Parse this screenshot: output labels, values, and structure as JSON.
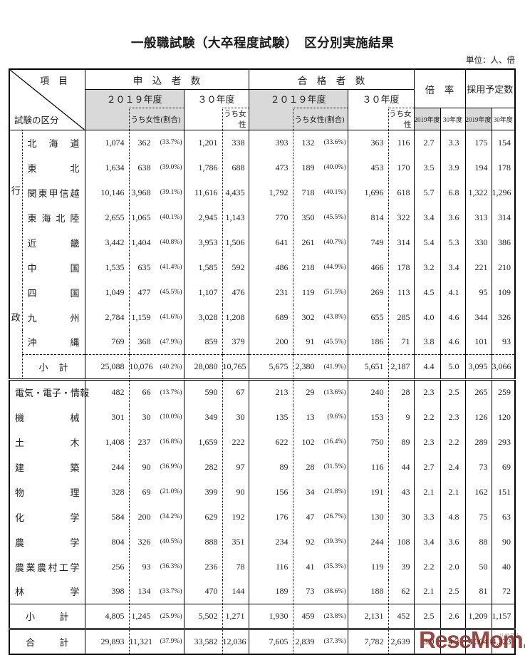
{
  "page": {
    "title": "一般職試験（大卒程度試験）　区分別実施結果",
    "unit_label": "単位：人、倍"
  },
  "header": {
    "item_label": "項　目",
    "category_label": "試験の区分",
    "applicants": "申　込　者　数",
    "passers": "合　格　者　数",
    "ratio": "倍　率",
    "planned": "採用予定数",
    "fy2019": "２０１９年度",
    "fy30": "３０年度",
    "female_share": "うち女性(割合)",
    "female": "うち女性",
    "fy2019_small": "2019年度",
    "fy30_small": "30年度"
  },
  "colors": {
    "header_gray": "#d9d9d9",
    "watermark_red": "#8a2822",
    "border_black": "#000000"
  },
  "watermark": {
    "text": "ReseMom.",
    "ruby": "リセマム"
  },
  "table": {
    "admin_group_label": "行政",
    "blocks": [
      {
        "id": "admin",
        "rows": [
          {
            "label": "北海道",
            "app2019": "1,074",
            "app2019_f": "362",
            "app2019_pct": "(33.7%)",
            "app30": "1,201",
            "app30_f": "338",
            "pass2019": "393",
            "pass2019_f": "132",
            "pass2019_pct": "(33.6%)",
            "pass30": "363",
            "pass30_f": "116",
            "ratio2019": "2.7",
            "ratio30": "3.3",
            "plan2019": "175",
            "plan30": "154"
          },
          {
            "label": "東北",
            "app2019": "1,634",
            "app2019_f": "638",
            "app2019_pct": "(39.0%)",
            "app30": "1,786",
            "app30_f": "688",
            "pass2019": "473",
            "pass2019_f": "189",
            "pass2019_pct": "(40.0%)",
            "pass30": "453",
            "pass30_f": "170",
            "ratio2019": "3.5",
            "ratio30": "3.9",
            "plan2019": "194",
            "plan30": "178"
          },
          {
            "label": "関東甲信越",
            "app2019": "10,146",
            "app2019_f": "3,968",
            "app2019_pct": "(39.1%)",
            "app30": "11,616",
            "app30_f": "4,435",
            "pass2019": "1,792",
            "pass2019_f": "718",
            "pass2019_pct": "(40.1%)",
            "pass30": "1,696",
            "pass30_f": "618",
            "ratio2019": "5.7",
            "ratio30": "6.8",
            "plan2019": "1,322",
            "plan30": "1,296"
          },
          {
            "label": "東海北陸",
            "app2019": "2,655",
            "app2019_f": "1,065",
            "app2019_pct": "(40.1%)",
            "app30": "2,945",
            "app30_f": "1,143",
            "pass2019": "770",
            "pass2019_f": "350",
            "pass2019_pct": "(45.5%)",
            "pass30": "814",
            "pass30_f": "322",
            "ratio2019": "3.4",
            "ratio30": "3.6",
            "plan2019": "313",
            "plan30": "314"
          },
          {
            "label": "近畿",
            "app2019": "3,442",
            "app2019_f": "1,404",
            "app2019_pct": "(40.8%)",
            "app30": "3,953",
            "app30_f": "1,506",
            "pass2019": "641",
            "pass2019_f": "261",
            "pass2019_pct": "(40.7%)",
            "pass30": "749",
            "pass30_f": "314",
            "ratio2019": "5.4",
            "ratio30": "5.3",
            "plan2019": "330",
            "plan30": "386"
          },
          {
            "label": "中国",
            "app2019": "1,535",
            "app2019_f": "635",
            "app2019_pct": "(41.4%)",
            "app30": "1,585",
            "app30_f": "592",
            "pass2019": "486",
            "pass2019_f": "218",
            "pass2019_pct": "(44.9%)",
            "pass30": "466",
            "pass30_f": "178",
            "ratio2019": "3.2",
            "ratio30": "3.4",
            "plan2019": "221",
            "plan30": "210"
          },
          {
            "label": "四国",
            "app2019": "1,049",
            "app2019_f": "477",
            "app2019_pct": "(45.5%)",
            "app30": "1,107",
            "app30_f": "476",
            "pass2019": "231",
            "pass2019_f": "119",
            "pass2019_pct": "(51.5%)",
            "pass30": "269",
            "pass30_f": "113",
            "ratio2019": "4.5",
            "ratio30": "4.1",
            "plan2019": "95",
            "plan30": "109"
          },
          {
            "label": "九州",
            "app2019": "2,784",
            "app2019_f": "1,159",
            "app2019_pct": "(41.6%)",
            "app30": "3,028",
            "app30_f": "1,208",
            "pass2019": "689",
            "pass2019_f": "302",
            "pass2019_pct": "(43.8%)",
            "pass30": "655",
            "pass30_f": "285",
            "ratio2019": "4.0",
            "ratio30": "4.6",
            "plan2019": "344",
            "plan30": "326"
          },
          {
            "label": "沖縄",
            "app2019": "769",
            "app2019_f": "368",
            "app2019_pct": "(47.9%)",
            "app30": "859",
            "app30_f": "379",
            "pass2019": "200",
            "pass2019_f": "91",
            "pass2019_pct": "(45.5%)",
            "pass30": "186",
            "pass30_f": "71",
            "ratio2019": "3.8",
            "ratio30": "4.6",
            "plan2019": "101",
            "plan30": "93"
          },
          {
            "label": "小　計",
            "label_style": "subtotal-admin",
            "rule": "dashed",
            "app2019": "25,088",
            "app2019_f": "10,076",
            "app2019_pct": "(40.2%)",
            "app30": "28,080",
            "app30_f": "10,765",
            "pass2019": "5,675",
            "pass2019_f": "2,380",
            "pass2019_pct": "(41.9%)",
            "pass30": "5,651",
            "pass30_f": "2,187",
            "ratio2019": "4.4",
            "ratio30": "5.0",
            "plan2019": "3,095",
            "plan30": "3,066"
          }
        ]
      },
      {
        "id": "tech",
        "rows": [
          {
            "label": "電気・電子・情報",
            "app2019": "482",
            "app2019_f": "66",
            "app2019_pct": "(13.7%)",
            "app30": "590",
            "app30_f": "67",
            "pass2019": "213",
            "pass2019_f": "29",
            "pass2019_pct": "(13.6%)",
            "pass30": "240",
            "pass30_f": "28",
            "ratio2019": "2.3",
            "ratio30": "2.5",
            "plan2019": "265",
            "plan30": "259"
          },
          {
            "label": "機械",
            "app2019": "301",
            "app2019_f": "30",
            "app2019_pct": "(10.0%)",
            "app30": "349",
            "app30_f": "30",
            "pass2019": "135",
            "pass2019_f": "13",
            "pass2019_pct": "(9.6%)",
            "pass30": "153",
            "pass30_f": "9",
            "ratio2019": "2.2",
            "ratio30": "2.3",
            "plan2019": "126",
            "plan30": "120"
          },
          {
            "label": "土木",
            "app2019": "1,408",
            "app2019_f": "237",
            "app2019_pct": "(16.8%)",
            "app30": "1,659",
            "app30_f": "222",
            "pass2019": "622",
            "pass2019_f": "102",
            "pass2019_pct": "(16.4%)",
            "pass30": "750",
            "pass30_f": "89",
            "ratio2019": "2.3",
            "ratio30": "2.2",
            "plan2019": "289",
            "plan30": "293"
          },
          {
            "label": "建築",
            "app2019": "244",
            "app2019_f": "90",
            "app2019_pct": "(36.9%)",
            "app30": "282",
            "app30_f": "97",
            "pass2019": "89",
            "pass2019_f": "28",
            "pass2019_pct": "(31.5%)",
            "pass30": "116",
            "pass30_f": "44",
            "ratio2019": "2.7",
            "ratio30": "2.4",
            "plan2019": "73",
            "plan30": "69"
          },
          {
            "label": "物理",
            "app2019": "328",
            "app2019_f": "69",
            "app2019_pct": "(21.0%)",
            "app30": "399",
            "app30_f": "90",
            "pass2019": "156",
            "pass2019_f": "34",
            "pass2019_pct": "(21.8%)",
            "pass30": "191",
            "pass30_f": "43",
            "ratio2019": "2.1",
            "ratio30": "2.1",
            "plan2019": "162",
            "plan30": "151"
          },
          {
            "label": "化学",
            "app2019": "584",
            "app2019_f": "200",
            "app2019_pct": "(34.2%)",
            "app30": "629",
            "app30_f": "192",
            "pass2019": "176",
            "pass2019_f": "47",
            "pass2019_pct": "(26.7%)",
            "pass30": "130",
            "pass30_f": "30",
            "ratio2019": "3.3",
            "ratio30": "4.8",
            "plan2019": "75",
            "plan30": "63"
          },
          {
            "label": "農学",
            "app2019": "804",
            "app2019_f": "326",
            "app2019_pct": "(40.5%)",
            "app30": "888",
            "app30_f": "351",
            "pass2019": "234",
            "pass2019_f": "92",
            "pass2019_pct": "(39.3%)",
            "pass30": "244",
            "pass30_f": "108",
            "ratio2019": "3.4",
            "ratio30": "3.6",
            "plan2019": "88",
            "plan30": "90"
          },
          {
            "label": "農業農村工学",
            "app2019": "256",
            "app2019_f": "93",
            "app2019_pct": "(36.3%)",
            "app30": "236",
            "app30_f": "78",
            "pass2019": "116",
            "pass2019_f": "41",
            "pass2019_pct": "(35.3%)",
            "pass30": "119",
            "pass30_f": "39",
            "ratio2019": "2.2",
            "ratio30": "2.0",
            "plan2019": "50",
            "plan30": "40"
          },
          {
            "label": "林学",
            "app2019": "398",
            "app2019_f": "134",
            "app2019_pct": "(33.7%)",
            "app30": "470",
            "app30_f": "144",
            "pass2019": "189",
            "pass2019_f": "73",
            "pass2019_pct": "(38.6%)",
            "pass30": "188",
            "pass30_f": "62",
            "ratio2019": "2.1",
            "ratio30": "2.5",
            "plan2019": "81",
            "plan30": "72"
          },
          {
            "label": "小　計",
            "label_style": "subtotal",
            "rule": "solid",
            "app2019": "4,805",
            "app2019_f": "1,245",
            "app2019_pct": "(25.9%)",
            "app30": "5,502",
            "app30_f": "1,271",
            "pass2019": "1,930",
            "pass2019_f": "459",
            "pass2019_pct": "(23.8%)",
            "pass30": "2,131",
            "pass30_f": "452",
            "ratio2019": "2.5",
            "ratio30": "2.6",
            "plan2019": "1,209",
            "plan30": "1,157"
          }
        ]
      },
      {
        "id": "grand",
        "rows": [
          {
            "label": "合　計",
            "label_style": "subtotal",
            "app2019": "29,893",
            "app2019_f": "11,321",
            "app2019_pct": "(37.9%)",
            "app30": "33,582",
            "app30_f": "12,036",
            "pass2019": "7,605",
            "pass2019_f": "2,839",
            "pass2019_pct": "(37.3%)",
            "pass30": "7,782",
            "pass30_f": "2,639",
            "ratio2019": "3.9",
            "ratio30": "4.3",
            "plan2019": "4,304",
            "plan30": "4,223"
          }
        ]
      }
    ]
  }
}
